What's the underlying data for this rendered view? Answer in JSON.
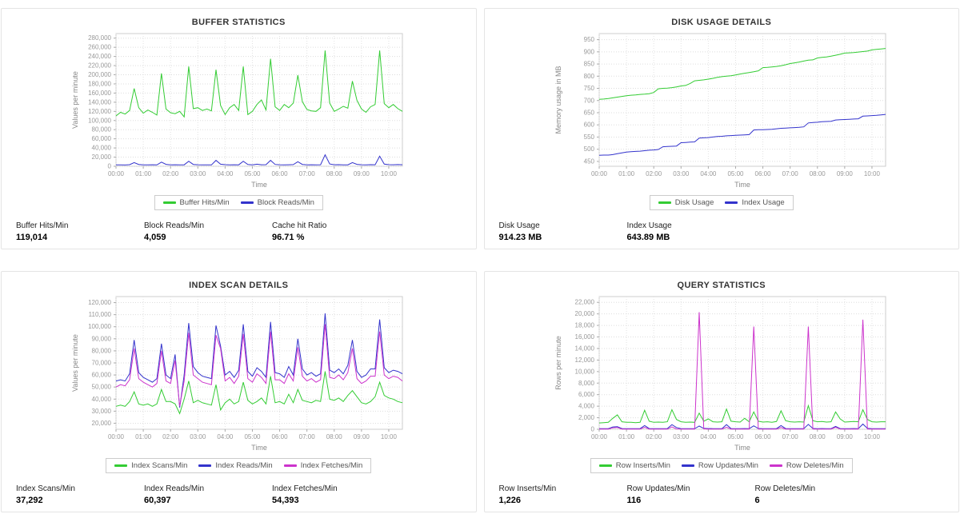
{
  "colors": {
    "green": "#33cc33",
    "blue": "#3333cc",
    "magenta": "#cc33cc",
    "grid": "#dddddd",
    "axis_text": "#888888"
  },
  "panels": [
    {
      "title": "BUFFER STATISTICS",
      "stats": [
        {
          "label": "Buffer Hits/Min",
          "value": "119,014"
        },
        {
          "label": "Block Reads/Min",
          "value": "4,059"
        },
        {
          "label": "Cache hit Ratio",
          "value": "96.71 %"
        }
      ]
    },
    {
      "title": "DISK USAGE DETAILS",
      "stats": [
        {
          "label": "Disk Usage",
          "value": "914.23 MB"
        },
        {
          "label": "Index Usage",
          "value": "643.89 MB"
        }
      ]
    },
    {
      "title": "INDEX SCAN DETAILS",
      "stats": [
        {
          "label": "Index Scans/Min",
          "value": "37,292"
        },
        {
          "label": "Index Reads/Min",
          "value": "60,397"
        },
        {
          "label": "Index Fetches/Min",
          "value": "54,393"
        }
      ]
    },
    {
      "title": "QUERY STATISTICS",
      "stats": [
        {
          "label": "Row Inserts/Min",
          "value": "1,226"
        },
        {
          "label": "Row Updates/Min",
          "value": "116"
        },
        {
          "label": "Row Deletes/Min",
          "value": "6"
        }
      ]
    }
  ],
  "chart_data": [
    {
      "type": "line",
      "title": "BUFFER STATISTICS",
      "xlabel": "Time",
      "ylabel": "Values per minute",
      "ylim": [
        0,
        290000
      ],
      "yticks": [
        0,
        20000,
        40000,
        60000,
        80000,
        100000,
        120000,
        140000,
        160000,
        180000,
        200000,
        220000,
        240000,
        260000,
        280000
      ],
      "x_start_min": 0,
      "x_step_min": 10,
      "x_end_min": 630,
      "x_tick_minutes": [
        0,
        60,
        120,
        180,
        240,
        300,
        360,
        420,
        480,
        540,
        600
      ],
      "x_tick_labels": [
        "00:00",
        "01:00",
        "02:00",
        "03:00",
        "04:00",
        "05:00",
        "06:00",
        "07:00",
        "08:00",
        "09:00",
        "10:00"
      ],
      "grid": "dotted",
      "legend_position": "bottom",
      "series": [
        {
          "name": "Buffer Hits/Min",
          "color": "#33cc33",
          "values": [
            110000,
            118000,
            114000,
            122000,
            170000,
            128000,
            116000,
            123000,
            118000,
            112000,
            203000,
            125000,
            117000,
            115000,
            120000,
            108000,
            218000,
            126000,
            128000,
            122000,
            125000,
            121000,
            211000,
            133000,
            113000,
            128000,
            135000,
            122000,
            218000,
            113000,
            120000,
            135000,
            145000,
            123000,
            235000,
            130000,
            122000,
            135000,
            128000,
            138000,
            199000,
            141000,
            124000,
            121000,
            120000,
            128000,
            253000,
            138000,
            120000,
            125000,
            131000,
            127000,
            186000,
            144000,
            125000,
            118000,
            130000,
            135000,
            253000,
            137000,
            128000,
            135000,
            126000,
            120000
          ]
        },
        {
          "name": "Block Reads/Min",
          "color": "#3333cc",
          "values": [
            3000,
            3200,
            2800,
            3500,
            8000,
            4000,
            3200,
            3000,
            3300,
            2900,
            9000,
            4200,
            3100,
            3400,
            3000,
            3200,
            11000,
            4000,
            3300,
            3100,
            3200,
            3000,
            13000,
            4500,
            3500,
            3200,
            3400,
            3100,
            11000,
            3800,
            3200,
            4500,
            3300,
            3500,
            13000,
            4100,
            3400,
            3100,
            3300,
            3600,
            10000,
            4000,
            3200,
            3300,
            3100,
            3400,
            25000,
            5000,
            3300,
            3500,
            3200,
            3100,
            8000,
            4200,
            3400,
            3200,
            3500,
            3300,
            22000,
            4800,
            3500,
            3300,
            3600,
            3400
          ]
        }
      ]
    },
    {
      "type": "line",
      "title": "DISK USAGE DETAILS",
      "xlabel": "Time",
      "ylabel": "Memory usage in MB",
      "ylim": [
        430,
        975
      ],
      "yticks": [
        450,
        500,
        550,
        600,
        650,
        700,
        750,
        800,
        850,
        900,
        950
      ],
      "x_start_min": 0,
      "x_step_min": 10,
      "x_end_min": 630,
      "x_tick_minutes": [
        0,
        60,
        120,
        180,
        240,
        300,
        360,
        420,
        480,
        540,
        600
      ],
      "x_tick_labels": [
        "00:00",
        "01:00",
        "02:00",
        "03:00",
        "04:00",
        "05:00",
        "06:00",
        "07:00",
        "08:00",
        "09:00",
        "10:00"
      ],
      "grid": "dotted",
      "legend_position": "bottom",
      "series": [
        {
          "name": "Disk Usage",
          "color": "#33cc33",
          "values": [
            705,
            706,
            708,
            711,
            714,
            717,
            720,
            722,
            723,
            725,
            726,
            728,
            733,
            748,
            750,
            751,
            753,
            756,
            760,
            762,
            770,
            781,
            783,
            785,
            788,
            791,
            795,
            798,
            800,
            802,
            805,
            809,
            812,
            815,
            818,
            822,
            835,
            836,
            838,
            840,
            843,
            847,
            852,
            855,
            858,
            862,
            866,
            867,
            875,
            877,
            879,
            882,
            886,
            890,
            895,
            896,
            897,
            899,
            901,
            903,
            908,
            910,
            912,
            914
          ]
        },
        {
          "name": "Index Usage",
          "color": "#3333cc",
          "values": [
            475,
            476,
            476,
            478,
            482,
            485,
            488,
            490,
            491,
            492,
            494,
            496,
            497,
            499,
            510,
            511,
            512,
            513,
            527,
            528,
            529,
            530,
            546,
            547,
            548,
            550,
            552,
            553,
            555,
            556,
            557,
            558,
            559,
            560,
            579,
            580,
            580,
            581,
            582,
            584,
            586,
            587,
            588,
            589,
            590,
            592,
            608,
            610,
            611,
            613,
            614,
            615,
            620,
            621,
            622,
            623,
            624,
            625,
            636,
            637,
            638,
            639,
            641,
            643
          ]
        }
      ]
    },
    {
      "type": "line",
      "title": "INDEX SCAN DETAILS",
      "xlabel": "Time",
      "ylabel": "Values per minute",
      "ylim": [
        15000,
        125000
      ],
      "yticks": [
        20000,
        30000,
        40000,
        50000,
        60000,
        70000,
        80000,
        90000,
        100000,
        110000,
        120000
      ],
      "x_start_min": 0,
      "x_step_min": 10,
      "x_end_min": 630,
      "x_tick_minutes": [
        0,
        60,
        120,
        180,
        240,
        300,
        360,
        420,
        480,
        540,
        600
      ],
      "x_tick_labels": [
        "00:00",
        "01:00",
        "02:00",
        "03:00",
        "04:00",
        "05:00",
        "06:00",
        "07:00",
        "08:00",
        "09:00",
        "10:00"
      ],
      "grid": "dotted",
      "legend_position": "bottom",
      "series": [
        {
          "name": "Index Scans/Min",
          "color": "#33cc33",
          "values": [
            34000,
            35000,
            34000,
            38000,
            46000,
            36000,
            35000,
            36000,
            34000,
            36000,
            48000,
            38000,
            38000,
            36000,
            28000,
            40000,
            55000,
            37000,
            39000,
            37000,
            36000,
            35000,
            52000,
            31000,
            37000,
            40000,
            36000,
            38000,
            54000,
            39000,
            36000,
            38000,
            41000,
            36000,
            59000,
            37000,
            38000,
            36000,
            44000,
            37000,
            48000,
            39000,
            38000,
            37000,
            39000,
            38000,
            63000,
            40000,
            39000,
            41000,
            38000,
            43000,
            47000,
            42000,
            37000,
            36000,
            38000,
            42000,
            54000,
            43000,
            41000,
            40000,
            38000,
            37000
          ]
        },
        {
          "name": "Index Reads/Min",
          "color": "#3333cc",
          "values": [
            55000,
            56000,
            55000,
            61000,
            89000,
            62000,
            58000,
            56000,
            54000,
            57000,
            86000,
            60000,
            57000,
            77000,
            33000,
            60000,
            103000,
            67000,
            62000,
            59000,
            58000,
            57000,
            101000,
            84000,
            60000,
            63000,
            58000,
            64000,
            102000,
            63000,
            59000,
            66000,
            63000,
            58000,
            104000,
            62000,
            61000,
            58000,
            67000,
            60000,
            90000,
            65000,
            60000,
            62000,
            59000,
            61000,
            111000,
            64000,
            62000,
            65000,
            61000,
            68000,
            89000,
            63000,
            58000,
            60000,
            65000,
            65000,
            106000,
            66000,
            62000,
            64000,
            63000,
            61000
          ]
        },
        {
          "name": "Index Fetches/Min",
          "color": "#cc33cc",
          "values": [
            50000,
            52000,
            51000,
            56000,
            82000,
            57000,
            54000,
            52000,
            50000,
            53000,
            80000,
            55000,
            53000,
            72000,
            34000,
            55000,
            95000,
            60000,
            57000,
            54000,
            53000,
            52000,
            93000,
            82000,
            55000,
            58000,
            53000,
            59000,
            94000,
            57000,
            54000,
            61000,
            58000,
            53000,
            96000,
            56000,
            56000,
            53000,
            61000,
            55000,
            83000,
            59000,
            55000,
            57000,
            54000,
            56000,
            102000,
            58000,
            57000,
            60000,
            56000,
            62000,
            82000,
            57000,
            53000,
            55000,
            59000,
            59000,
            96000,
            60000,
            57000,
            59000,
            58000,
            55000
          ]
        }
      ]
    },
    {
      "type": "line",
      "title": "QUERY STATISTICS",
      "xlabel": "Time",
      "ylabel": "Rows per minute",
      "ylim": [
        0,
        23000
      ],
      "yticks": [
        0,
        2000,
        4000,
        6000,
        8000,
        10000,
        12000,
        14000,
        16000,
        18000,
        20000,
        22000
      ],
      "x_start_min": 0,
      "x_step_min": 10,
      "x_end_min": 630,
      "x_tick_minutes": [
        0,
        60,
        120,
        180,
        240,
        300,
        360,
        420,
        480,
        540,
        600
      ],
      "x_tick_labels": [
        "00:00",
        "01:00",
        "02:00",
        "03:00",
        "04:00",
        "05:00",
        "06:00",
        "07:00",
        "08:00",
        "09:00",
        "10:00"
      ],
      "grid": "dotted",
      "legend_position": "bottom",
      "series": [
        {
          "name": "Row Inserts/Min",
          "color": "#33cc33",
          "values": [
            1100,
            1150,
            1200,
            1900,
            2500,
            1300,
            1200,
            1200,
            1150,
            1200,
            3300,
            1400,
            1200,
            1250,
            1200,
            1300,
            3400,
            1700,
            1300,
            1200,
            1250,
            1200,
            2800,
            1400,
            1800,
            1300,
            1250,
            1300,
            3500,
            1400,
            1300,
            1250,
            1900,
            1300,
            3000,
            1400,
            1250,
            1300,
            1200,
            1350,
            3200,
            1500,
            1300,
            1250,
            1300,
            1250,
            4100,
            1500,
            1300,
            1350,
            1250,
            1300,
            3000,
            1800,
            1250,
            1300,
            1350,
            1300,
            3400,
            1700,
            1300,
            1250,
            1300,
            1300
          ]
        },
        {
          "name": "Row Updates/Min",
          "color": "#3333cc",
          "values": [
            100,
            110,
            105,
            400,
            450,
            120,
            110,
            105,
            100,
            110,
            650,
            130,
            105,
            115,
            110,
            120,
            800,
            300,
            110,
            105,
            110,
            100,
            550,
            150,
            120,
            110,
            105,
            115,
            800,
            130,
            110,
            105,
            120,
            110,
            600,
            140,
            105,
            110,
            100,
            115,
            650,
            130,
            110,
            105,
            115,
            110,
            850,
            140,
            115,
            120,
            105,
            110,
            500,
            130,
            105,
            110,
            120,
            115,
            900,
            150,
            110,
            105,
            115,
            110
          ]
        },
        {
          "name": "Row Deletes/Min",
          "color": "#cc33cc",
          "values": [
            30,
            35,
            30,
            250,
            300,
            40,
            35,
            30,
            35,
            30,
            350,
            45,
            30,
            40,
            35,
            30,
            400,
            60,
            35,
            30,
            35,
            30,
            20300,
            80,
            40,
            35,
            30,
            35,
            350,
            45,
            35,
            30,
            40,
            35,
            17800,
            60,
            30,
            35,
            30,
            40,
            300,
            45,
            35,
            30,
            35,
            30,
            17800,
            60,
            40,
            35,
            30,
            35,
            350,
            50,
            30,
            35,
            40,
            35,
            19000,
            55,
            35,
            30,
            35,
            30
          ]
        }
      ]
    }
  ]
}
